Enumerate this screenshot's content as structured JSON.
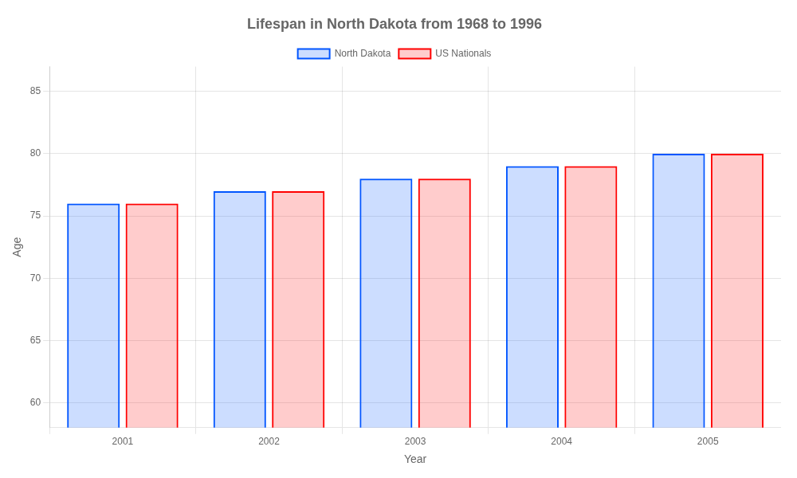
{
  "chart_data": {
    "type": "bar",
    "title": "Lifespan in North Dakota from 1968 to 1996",
    "x_label": "Year",
    "y_label": "Age",
    "categories": [
      "2001",
      "2002",
      "2003",
      "2004",
      "2005"
    ],
    "series": [
      {
        "name": "North Dakota",
        "color": "#0055ff",
        "values": [
          76,
          77,
          78,
          79,
          80
        ]
      },
      {
        "name": "US Nationals",
        "color": "#ff0000",
        "values": [
          76,
          77,
          78,
          79,
          80
        ]
      }
    ],
    "ylim": [
      58,
      87
    ],
    "yticks": [
      60,
      65,
      70,
      75,
      80,
      85
    ],
    "grid": true,
    "legend": "top"
  }
}
